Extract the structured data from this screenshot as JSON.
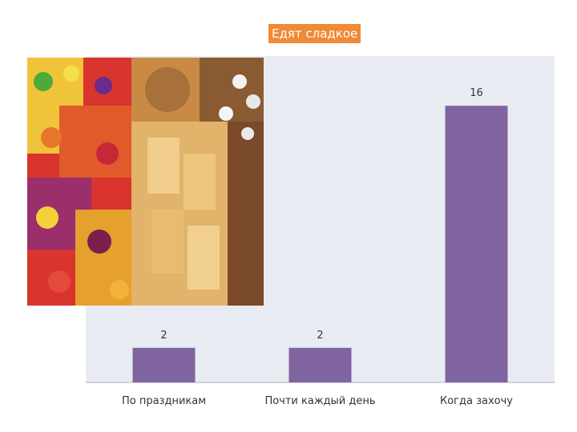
{
  "chart_data": {
    "type": "bar",
    "title": "Едят сладкое",
    "categories": [
      "По праздникам",
      "Почти каждый день",
      "Когда захочу"
    ],
    "values": [
      2,
      2,
      16
    ],
    "data_labels": [
      "2",
      "2",
      "16"
    ],
    "ylim": [
      0,
      18
    ],
    "xlabel": "",
    "ylabel": "",
    "grid": false,
    "legend": "none",
    "bar_color": "#8064a2",
    "plot_background": "#e9ebf2"
  },
  "photo": {
    "subject": "sweets-photo"
  }
}
